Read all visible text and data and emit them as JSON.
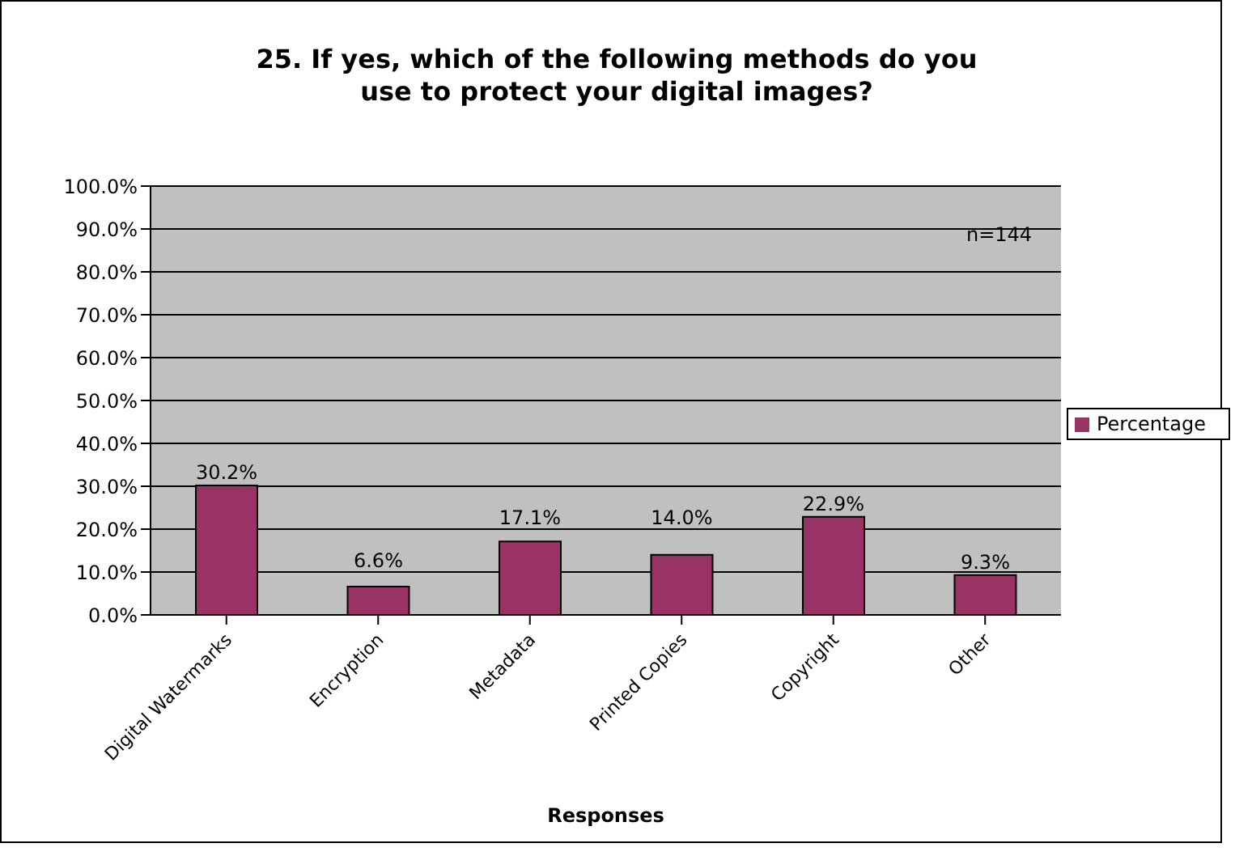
{
  "chart_data": {
    "type": "bar",
    "title": "25. If yes, which of the following methods do you use to protect your digital images?",
    "xlabel": "Responses",
    "categories": [
      "Digital Watermarks",
      "Encryption",
      "Metadata",
      "Printed Copies",
      "Copyright",
      "Other"
    ],
    "series": [
      {
        "name": "Percentage",
        "color": "#993366",
        "values": [
          30.2,
          6.6,
          17.1,
          14.0,
          22.9,
          9.3
        ],
        "value_labels": [
          "30.2%",
          "6.6%",
          "17.1%",
          "14.0%",
          "22.9%",
          "9.3%"
        ]
      }
    ],
    "ylim": [
      0,
      100
    ],
    "yticks": [
      {
        "value": 0,
        "label": "0.0%"
      },
      {
        "value": 10,
        "label": "10.0%"
      },
      {
        "value": 20,
        "label": "20.0%"
      },
      {
        "value": 30,
        "label": "30.0%"
      },
      {
        "value": 40,
        "label": "40.0%"
      },
      {
        "value": 50,
        "label": "50.0%"
      },
      {
        "value": 60,
        "label": "60.0%"
      },
      {
        "value": 70,
        "label": "70.0%"
      },
      {
        "value": 80,
        "label": "80.0%"
      },
      {
        "value": 90,
        "label": "90.0%"
      },
      {
        "value": 100,
        "label": "100.0%"
      }
    ],
    "grid": "y",
    "legend": "right",
    "annotations": [
      "n=144"
    ]
  }
}
